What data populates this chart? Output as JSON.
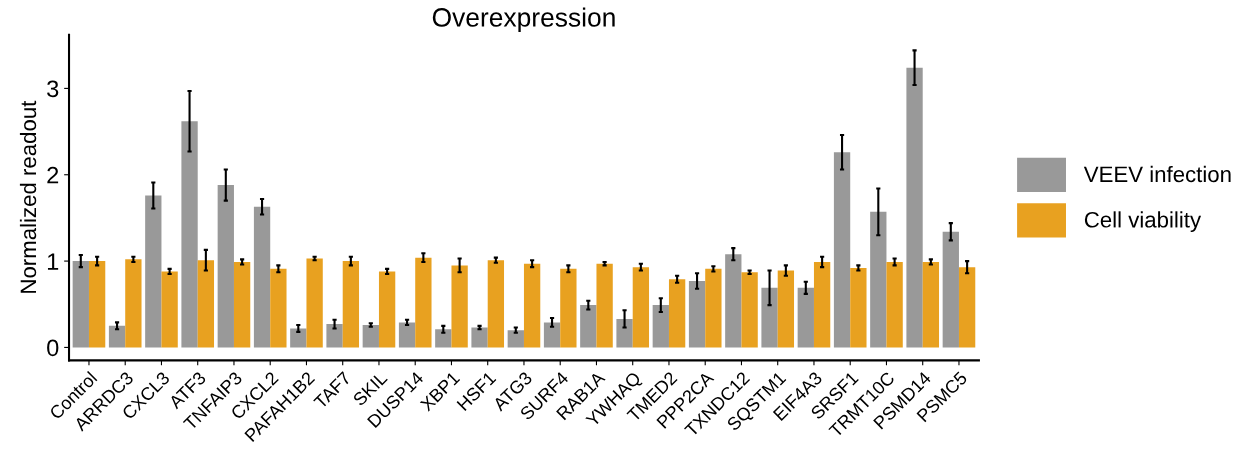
{
  "chart_data": {
    "type": "bar",
    "title": "Overexpression",
    "ylabel": "Normalized readout",
    "categories": [
      "Control",
      "ARRDC3",
      "CXCL3",
      "ATF3",
      "TNFAIP3",
      "CXCL2",
      "PAFAH1B2",
      "TAF7",
      "SKIL",
      "DUSP14",
      "XBP1",
      "HSF1",
      "ATG3",
      "SURF4",
      "RAB1A",
      "YWHAQ",
      "TMED2",
      "PPP2CA",
      "TXNDC12",
      "SQSTM1",
      "EIF4A3",
      "SRSF1",
      "TRMT10C",
      "PSMD14",
      "PSMC5"
    ],
    "series": [
      {
        "name": "VEEV infection",
        "color": "#999999",
        "values": [
          1.0,
          0.25,
          1.76,
          2.62,
          1.88,
          1.63,
          0.22,
          0.27,
          0.26,
          0.29,
          0.21,
          0.23,
          0.2,
          0.29,
          0.49,
          0.33,
          0.49,
          0.77,
          1.08,
          0.69,
          0.69,
          2.26,
          1.57,
          3.24,
          1.34
        ],
        "errors": [
          0.07,
          0.04,
          0.15,
          0.35,
          0.18,
          0.09,
          0.04,
          0.05,
          0.02,
          0.03,
          0.04,
          0.02,
          0.03,
          0.05,
          0.05,
          0.1,
          0.08,
          0.09,
          0.07,
          0.2,
          0.07,
          0.2,
          0.27,
          0.2,
          0.1
        ]
      },
      {
        "name": "Cell viability",
        "color": "#e8a120",
        "values": [
          1.0,
          1.02,
          0.88,
          1.01,
          0.99,
          0.91,
          1.03,
          1.0,
          0.88,
          1.04,
          0.95,
          1.01,
          0.97,
          0.91,
          0.97,
          0.93,
          0.79,
          0.91,
          0.87,
          0.89,
          0.99,
          0.92,
          0.99,
          0.99,
          0.93
        ],
        "errors": [
          0.05,
          0.03,
          0.03,
          0.12,
          0.03,
          0.04,
          0.02,
          0.05,
          0.03,
          0.05,
          0.08,
          0.03,
          0.04,
          0.04,
          0.02,
          0.04,
          0.04,
          0.03,
          0.02,
          0.06,
          0.06,
          0.03,
          0.04,
          0.03,
          0.07
        ]
      }
    ],
    "ylim": [
      -0.15,
      3.62
    ],
    "yticks": [
      0,
      1,
      2,
      3
    ],
    "grid": false,
    "legend": "right"
  }
}
